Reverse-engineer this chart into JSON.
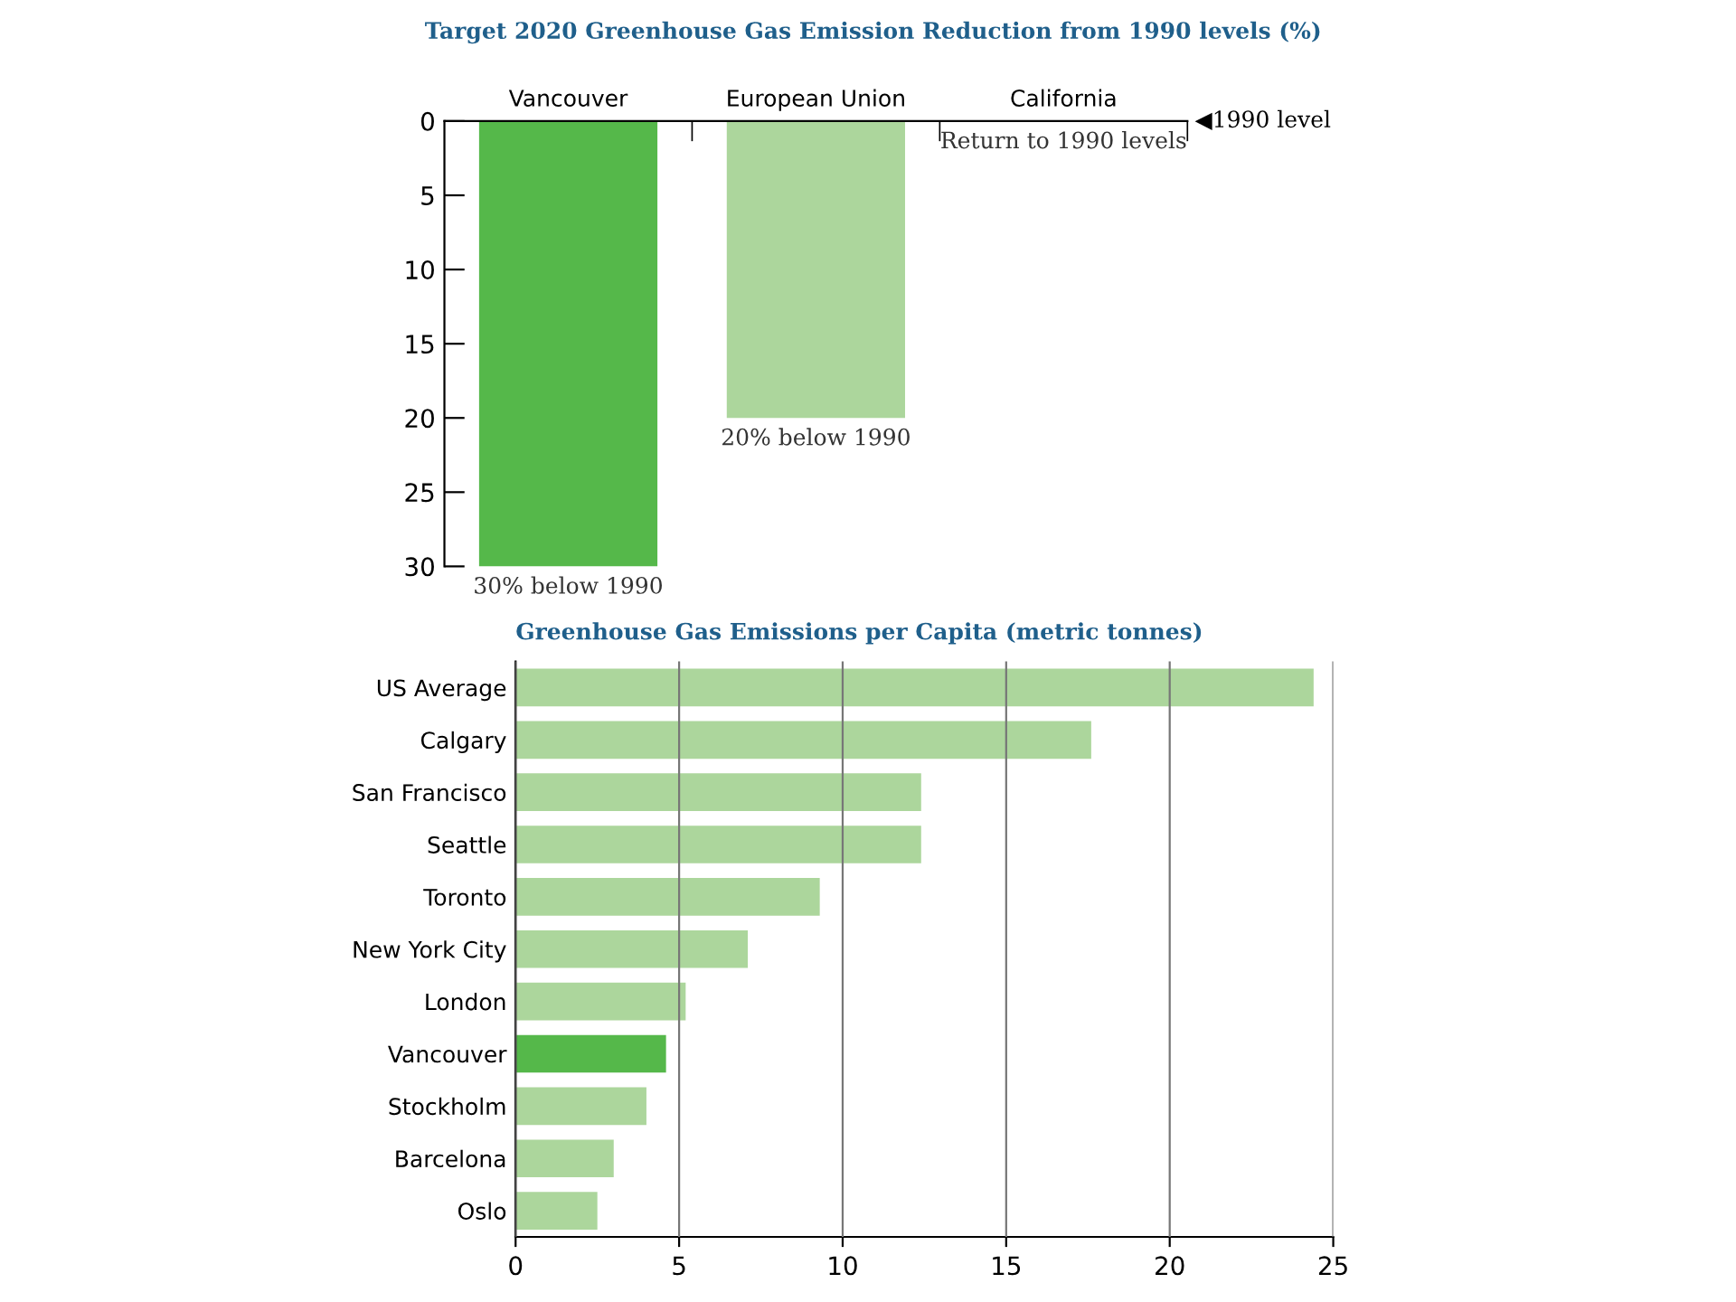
{
  "chart_data": [
    {
      "type": "bar",
      "title": "Target 2020 Greenhouse Gas Emission Reduction from 1990 levels (%)",
      "categories": [
        "Vancouver",
        "European Union",
        "California"
      ],
      "values": [
        30,
        20,
        0
      ],
      "colors": [
        "#55b84a",
        "#acd69c",
        "#acd69c"
      ],
      "value_labels": [
        "30% below 1990",
        "20% below 1990",
        "Return to 1990 levels"
      ],
      "ylim": [
        30,
        0
      ],
      "yticks": [
        0,
        5,
        10,
        15,
        20,
        25,
        30
      ],
      "annotations": [
        "◀1990 level"
      ]
    },
    {
      "type": "bar",
      "orientation": "horizontal",
      "title": "Greenhouse Gas Emissions per Capita (metric tonnes)",
      "categories": [
        "US Average",
        "Calgary",
        "San Francisco",
        "Seattle",
        "Toronto",
        "New York City",
        "London",
        "Vancouver",
        "Stockholm",
        "Barcelona",
        "Oslo"
      ],
      "values": [
        24.4,
        17.6,
        12.4,
        12.4,
        9.3,
        7.1,
        5.2,
        4.6,
        4.0,
        3.0,
        2.5
      ],
      "colors": [
        "#acd69c",
        "#acd69c",
        "#acd69c",
        "#acd69c",
        "#acd69c",
        "#acd69c",
        "#acd69c",
        "#55b84a",
        "#acd69c",
        "#acd69c",
        "#acd69c"
      ],
      "xlim": [
        0,
        25
      ],
      "xticks": [
        0,
        5,
        10,
        15,
        20,
        25
      ],
      "grid": "x"
    }
  ]
}
